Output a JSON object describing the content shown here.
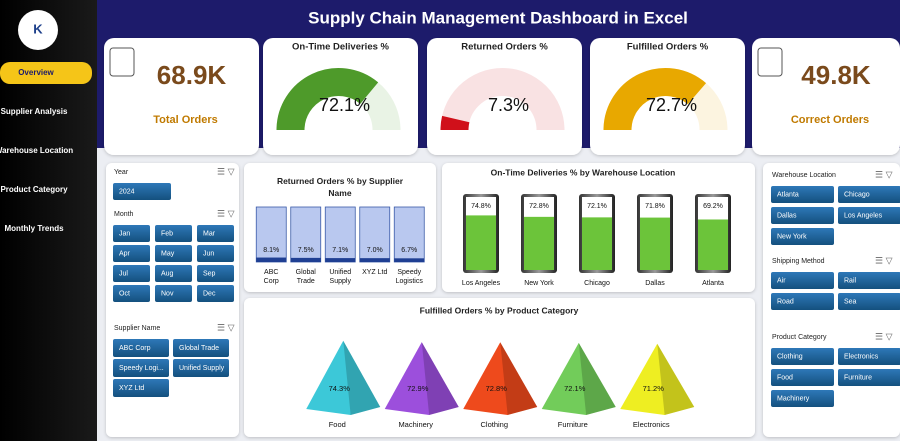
{
  "header": {
    "title": "Supply Chain Management Dashboard in Excel"
  },
  "sidebar": {
    "items": [
      "Overview",
      "Supplier Analysis",
      "Warehouse Location",
      "Product Category",
      "Monthly Trends"
    ]
  },
  "kpis": [
    {
      "label": "Total Orders",
      "value_label": "68.9K"
    },
    {
      "label": "On-Time Deliveries %",
      "value": 72.1,
      "value_label": "72.1%",
      "color": "#4e9a2a"
    },
    {
      "label": "Returned Orders %",
      "value": 7.3,
      "value_label": "7.3%",
      "color": "#d0101a"
    },
    {
      "label": "Fulfilled Orders %",
      "value": 72.7,
      "value_label": "72.7%",
      "color": "#e8a800"
    },
    {
      "label": "Correct Orders",
      "value_label": "49.8K"
    }
  ],
  "gauge_range": [
    0,
    100
  ],
  "slicers": [
    {
      "title": "Year",
      "items": [
        "2024"
      ]
    },
    {
      "title": "Month",
      "items": [
        "Jan",
        "Feb",
        "Mar",
        "Apr",
        "May",
        "Jun",
        "Jul",
        "Aug",
        "Sep",
        "Oct",
        "Nov",
        "Dec"
      ]
    },
    {
      "title": "Supplier Name",
      "items": [
        "ABC Corp",
        "Global Trade",
        "Speedy Logi...",
        "Unified Supply",
        "XYZ Ltd"
      ]
    },
    {
      "title": "Warehouse Location",
      "items": [
        "Atlanta",
        "Chicago",
        "Dallas",
        "Los Angeles",
        "New York"
      ]
    },
    {
      "title": "Shipping Method",
      "items": [
        "Air",
        "Rail",
        "Road",
        "Sea"
      ]
    },
    {
      "title": "Product Category",
      "items": [
        "Clothing",
        "Electronics",
        "Food",
        "Furniture",
        "Machinery"
      ]
    }
  ],
  "chart_data": [
    {
      "type": "bar",
      "title": "Returned Orders % by Supplier Name",
      "categories": [
        "ABC Corp",
        "Global Trade",
        "Unified Supply",
        "XYZ Ltd",
        "Speedy Logistics"
      ],
      "values": [
        8.1,
        7.5,
        7.1,
        7.0,
        6.7
      ],
      "value_labels": [
        "8.1%",
        "7.5%",
        "7.1%",
        "7.0%",
        "6.7%"
      ],
      "color": "#1f3f93",
      "ylim": [
        0,
        100
      ]
    },
    {
      "type": "cylinder",
      "title": "On-Time Deliveries % by Warehouse Location",
      "categories": [
        "Los Angeles",
        "New York",
        "Chicago",
        "Dallas",
        "Atlanta"
      ],
      "values": [
        74.8,
        72.8,
        72.1,
        71.8,
        69.2
      ],
      "value_labels": [
        "74.8%",
        "72.8%",
        "72.1%",
        "71.8%",
        "69.2%"
      ],
      "color": "#6cc43a",
      "ylim": [
        0,
        100
      ]
    },
    {
      "type": "pyramid",
      "title": "Fulfilled Orders % by Product Category",
      "categories": [
        "Food",
        "Machinery",
        "Clothing",
        "Furniture",
        "Electronics"
      ],
      "values": [
        74.3,
        72.9,
        72.8,
        72.1,
        71.2
      ],
      "value_labels": [
        "74.3%",
        "72.9%",
        "72.8%",
        "72.1%",
        "71.2%"
      ],
      "colors": [
        "#3cc8d8",
        "#9c4fdc",
        "#ee4a1c",
        "#72cc5a",
        "#eeee22"
      ],
      "ylim": [
        0,
        100
      ]
    }
  ]
}
